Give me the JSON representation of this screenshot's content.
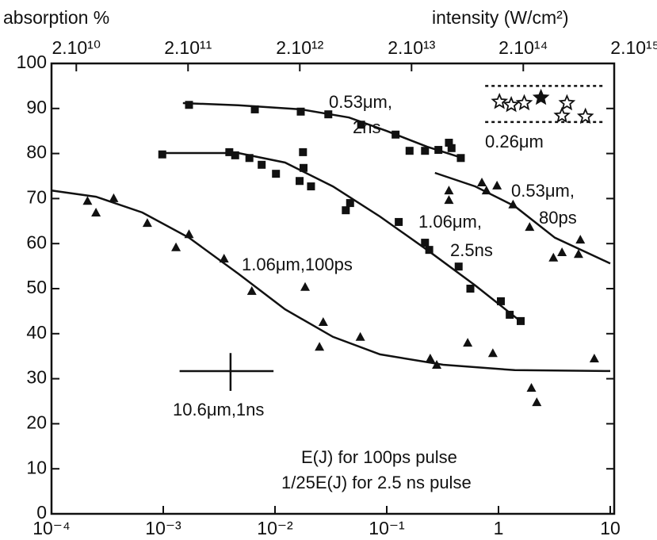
{
  "chart_data": {
    "type": "scatter",
    "title": "absorption %",
    "x2_title": "intensity (W/cm²)",
    "xscale": "log",
    "x2scale": "log",
    "xlim": [
      0.0001,
      10
    ],
    "xticks": [
      {
        "value": 0.0001,
        "label": "10⁻⁴"
      },
      {
        "value": 0.001,
        "label": "10⁻³"
      },
      {
        "value": 0.01,
        "label": "10⁻²"
      },
      {
        "value": 0.1,
        "label": "10⁻¹"
      },
      1,
      10
    ],
    "x2lim": [
      12000000000,
      1200000000000000
    ],
    "x2ticks": [
      {
        "value": 20000000000,
        "label": "2.10¹⁰"
      },
      {
        "value": 200000000000,
        "label": "2.10¹¹"
      },
      {
        "value": 2000000000000,
        "label": "2.10¹²"
      },
      {
        "value": 20000000000000,
        "label": "2.10¹³"
      },
      {
        "value": 200000000000000,
        "label": "2.10¹⁴"
      },
      {
        "value": 2000000000000000,
        "label": "2.10¹⁵"
      }
    ],
    "ylim": [
      0,
      100
    ],
    "yticks": [
      0,
      10,
      20,
      30,
      40,
      50,
      60,
      70,
      80,
      90,
      100
    ],
    "series": [
      {
        "marker": "square",
        "color": "#111111",
        "x": [
          0.0017,
          0.0066,
          0.017,
          0.03,
          0.059,
          0.12,
          0.16,
          0.22,
          0.29,
          0.36,
          0.38,
          0.46
        ],
        "values": [
          90.8,
          89.8,
          89.3,
          88.7,
          86.4,
          84.2,
          80.6,
          80.6,
          80.8,
          82.4,
          81.2,
          79.0
        ]
      },
      {
        "marker": "square",
        "color": "#111111",
        "x": [
          0.00098,
          0.0039,
          0.0044,
          0.0059,
          0.0076,
          0.0102,
          0.0166,
          0.0178,
          0.018,
          0.021,
          0.043,
          0.047,
          0.128,
          0.22,
          0.24,
          0.44,
          0.56,
          1.05,
          1.26,
          1.58
        ],
        "values": [
          79.8,
          80.3,
          79.6,
          79.0,
          77.5,
          75.5,
          73.9,
          80.3,
          76.8,
          72.7,
          67.4,
          69.0,
          64.8,
          60.2,
          58.6,
          54.9,
          50.0,
          47.2,
          44.2,
          42.8
        ]
      },
      {
        "marker": "triangle",
        "color": "#111111",
        "x": [
          0.00021,
          0.00025,
          0.00036,
          0.00072,
          0.0013,
          0.0017,
          0.0035,
          0.0062,
          0.0186,
          0.025,
          0.027,
          0.058,
          0.245,
          0.28,
          0.53,
          0.89,
          1.97,
          2.2,
          7.2
        ],
        "values": [
          69.5,
          66.9,
          70.1,
          64.6,
          59.2,
          62.1,
          56.7,
          49.5,
          50.4,
          37.1,
          42.6,
          39.3,
          34.5,
          33.1,
          38.0,
          35.7,
          28.0,
          24.8,
          34.5
        ]
      },
      {
        "marker": "triangle",
        "color": "#111111",
        "x": [
          0.36,
          0.36,
          0.71,
          0.78,
          0.97,
          1.35,
          1.9,
          3.1,
          3.7,
          5.2,
          5.4
        ],
        "values": [
          71.8,
          69.7,
          73.6,
          71.8,
          72.9,
          68.7,
          63.7,
          56.9,
          58.1,
          57.7,
          60.9
        ]
      },
      {
        "marker": "star",
        "color": "#111111",
        "x": [
          1.02,
          1.3,
          1.7,
          2.4,
          4.1,
          3.7,
          6.0
        ],
        "values": [
          91.5,
          90.8,
          91.2,
          92.4,
          91.2,
          88.4,
          88.2
        ]
      }
    ],
    "fits": [
      {
        "x": [
          0.0015,
          0.0047,
          0.017,
          0.046,
          0.1,
          0.23,
          0.49
        ],
        "values": [
          91.2,
          90.7,
          89.8,
          88.0,
          85.0,
          81.5,
          78.9
        ]
      },
      {
        "x": [
          0.00091,
          0.0047,
          0.0123,
          0.033,
          0.087,
          0.23,
          0.62,
          1.66
        ],
        "values": [
          80.1,
          80.1,
          78.0,
          72.7,
          66.0,
          58.6,
          50.7,
          42.3
        ]
      },
      {
        "x": [
          0.0001,
          0.00025,
          0.00065,
          0.0017,
          0.0047,
          0.0123,
          0.033,
          0.087,
          0.32,
          1.4,
          10
        ],
        "values": [
          71.8,
          70.4,
          66.9,
          61.3,
          53.3,
          45.4,
          39.3,
          35.4,
          33.1,
          31.9,
          31.7
        ]
      },
      {
        "x": [
          0.27,
          0.62,
          1.4,
          3.2,
          10
        ],
        "values": [
          75.7,
          72.7,
          68.3,
          61.3,
          55.6
        ]
      }
    ],
    "band": {
      "xlow": 0.76,
      "xhigh": 8.7,
      "ylow": 87,
      "yhigh": 95
    },
    "error_cross": {
      "x": 0.004,
      "y": 31.7,
      "xlow": 0.0014,
      "xhigh": 0.0097,
      "ylow": 27.3,
      "yhigh": 35.7
    },
    "annotations": [
      "0.53μm,",
      "2ns",
      "0.26μm",
      "0.53μm,",
      "80ps",
      "1.06μm,",
      "2.5ns",
      "1.06μm,100ps",
      "10.6μm,1ns",
      "E(J) for 100ps pulse",
      "1/25E(J) for 2.5 ns pulse"
    ]
  }
}
